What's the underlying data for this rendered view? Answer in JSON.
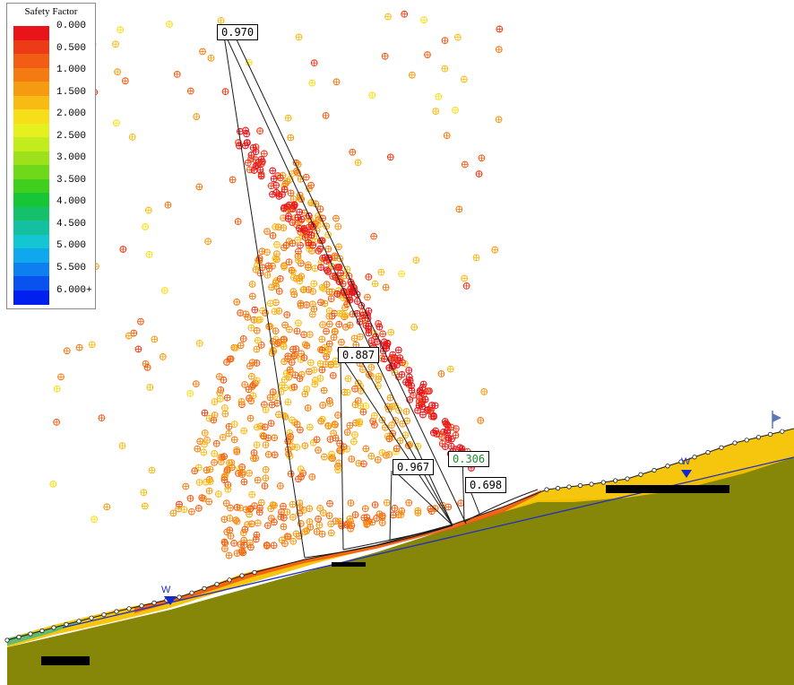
{
  "legend": {
    "title": "Safety Factor",
    "colors": [
      "#e8141a",
      "#ee3b17",
      "#f25c14",
      "#f47a12",
      "#f69a12",
      "#f8bb14",
      "#f8de1a",
      "#e6f01e",
      "#c2ec1c",
      "#9ce11a",
      "#6fd81a",
      "#3fcf1c",
      "#17c636",
      "#14c06a",
      "#14c0a0",
      "#13c6d2",
      "#0fa8ee",
      "#0d7fef",
      "#0a52ef",
      "#0020f0"
    ],
    "labels": [
      "0.000",
      "0.500",
      "1.000",
      "1.500",
      "2.000",
      "2.500",
      "3.000",
      "3.500",
      "4.000",
      "4.500",
      "5.000",
      "5.500",
      "6.000+"
    ]
  },
  "slip_surfaces": [
    {
      "label": "0.970",
      "critical": false
    },
    {
      "label": "0.887",
      "critical": false
    },
    {
      "label": "0.967",
      "critical": false
    },
    {
      "label": "0.306",
      "critical": true
    },
    {
      "label": "0.698",
      "critical": false
    }
  ],
  "markers": {
    "water_table": "W",
    "water_table_right": "W"
  },
  "colors": {
    "ground": "#868609",
    "water_line": "#2030c0",
    "critical_label": "#1e8a2a",
    "slip_line": "#1a1a1a"
  }
}
